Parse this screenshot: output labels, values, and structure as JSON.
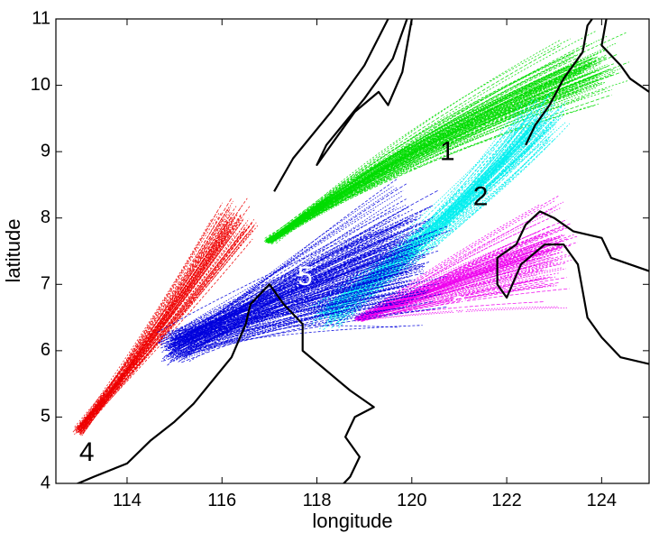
{
  "chart_data": {
    "type": "line",
    "xlabel": "longitude",
    "ylabel": "latitude",
    "xlim": [
      112.5,
      125
    ],
    "ylim": [
      4,
      11
    ],
    "xticks": [
      114,
      116,
      118,
      120,
      122,
      124
    ],
    "yticks": [
      4,
      5,
      6,
      7,
      8,
      9,
      10,
      11
    ],
    "grid": false,
    "coastline_color": "#000000",
    "coastlines": [
      [
        [
          112.8,
          3.95
        ],
        [
          113.3,
          4.1
        ],
        [
          114.0,
          4.3
        ],
        [
          114.5,
          4.65
        ],
        [
          115.0,
          4.93
        ],
        [
          115.4,
          5.2
        ],
        [
          115.8,
          5.55
        ],
        [
          116.2,
          5.9
        ],
        [
          116.5,
          6.4
        ],
        [
          116.6,
          6.7
        ],
        [
          117.0,
          7.0
        ],
        [
          117.3,
          6.7
        ],
        [
          117.7,
          6.4
        ],
        [
          117.7,
          6.0
        ],
        [
          118.2,
          5.7
        ],
        [
          118.7,
          5.4
        ],
        [
          119.2,
          5.15
        ],
        [
          118.8,
          5.0
        ],
        [
          118.6,
          4.7
        ],
        [
          118.9,
          4.4
        ],
        [
          118.7,
          4.1
        ],
        [
          118.5,
          3.95
        ]
      ],
      [
        [
          117.1,
          8.4
        ],
        [
          117.5,
          8.9
        ],
        [
          118.3,
          9.6
        ],
        [
          119.0,
          10.3
        ],
        [
          119.5,
          11.0
        ]
      ],
      [
        [
          120.0,
          11.0
        ],
        [
          119.8,
          10.2
        ],
        [
          119.5,
          9.7
        ],
        [
          119.3,
          9.9
        ],
        [
          118.8,
          9.6
        ],
        [
          118.2,
          9.0
        ],
        [
          118.0,
          8.8
        ],
        [
          118.2,
          9.1
        ],
        [
          119.0,
          9.8
        ],
        [
          119.6,
          10.4
        ],
        [
          119.9,
          11.0
        ]
      ],
      [
        [
          122.4,
          9.1
        ],
        [
          122.6,
          9.4
        ],
        [
          122.9,
          9.7
        ],
        [
          123.2,
          10.1
        ],
        [
          123.4,
          10.3
        ],
        [
          123.6,
          10.5
        ],
        [
          123.7,
          10.9
        ],
        [
          123.8,
          11.0
        ]
      ],
      [
        [
          125.0,
          7.2
        ],
        [
          124.2,
          7.4
        ],
        [
          124.0,
          7.7
        ],
        [
          123.4,
          7.8
        ],
        [
          123.0,
          8.0
        ],
        [
          122.7,
          8.1
        ],
        [
          122.4,
          7.9
        ],
        [
          122.2,
          7.6
        ],
        [
          121.8,
          7.4
        ],
        [
          121.8,
          7.0
        ],
        [
          122.0,
          6.8
        ],
        [
          122.3,
          7.3
        ],
        [
          122.8,
          7.6
        ],
        [
          123.2,
          7.6
        ],
        [
          123.5,
          7.3
        ],
        [
          123.6,
          6.9
        ],
        [
          123.7,
          6.5
        ],
        [
          124.0,
          6.2
        ],
        [
          124.4,
          5.9
        ],
        [
          125.0,
          5.8
        ]
      ],
      [
        [
          124.1,
          11.0
        ],
        [
          124.0,
          10.6
        ],
        [
          124.4,
          10.3
        ],
        [
          124.6,
          10.1
        ],
        [
          125.0,
          9.9
        ]
      ]
    ],
    "series": [
      {
        "color": "#00dd00",
        "start": [
          117.0,
          7.65
        ],
        "end": [
          123.8,
          10.25
        ],
        "start_spread": [
          0.15,
          0.05
        ],
        "end_spread": [
          0.9,
          0.7
        ],
        "bow": 0.18,
        "count": 110
      },
      {
        "color": "#00eeee",
        "start": [
          118.2,
          6.55
        ],
        "end": [
          122.8,
          9.5
        ],
        "start_spread": [
          0.5,
          0.3
        ],
        "end_spread": [
          0.8,
          0.6
        ],
        "bow": -0.12,
        "count": 90
      },
      {
        "color": "#ee00ee",
        "start": [
          118.9,
          6.48
        ],
        "end": [
          123.0,
          7.45
        ],
        "start_spread": [
          0.2,
          0.06
        ],
        "end_spread": [
          0.7,
          1.0
        ],
        "bow": 0.1,
        "count": 100
      },
      {
        "color": "#ee0000",
        "start": [
          113.0,
          4.8
        ],
        "end": [
          116.3,
          7.95
        ],
        "start_spread": [
          0.15,
          0.12
        ],
        "end_spread": [
          0.6,
          0.4
        ],
        "bow": -0.04,
        "count": 70
      },
      {
        "color": "#0000dd",
        "start": [
          115.0,
          6.05
        ],
        "end": [
          120.0,
          7.5
        ],
        "start_spread": [
          0.5,
          0.35
        ],
        "end_spread": [
          1.0,
          1.3
        ],
        "bow": 0.1,
        "count": 170
      }
    ],
    "annotations": [
      {
        "text": "1",
        "x": 120.75,
        "y": 8.98,
        "color": "#000000"
      },
      {
        "text": "2",
        "x": 121.45,
        "y": 8.3,
        "color": "#000000"
      },
      {
        "text": "3",
        "x": 121.0,
        "y": 6.65,
        "color": "#ffffff"
      },
      {
        "text": "4",
        "x": 113.15,
        "y": 4.45,
        "color": "#000000"
      },
      {
        "text": "5",
        "x": 117.75,
        "y": 7.1,
        "color": "#ffffff"
      }
    ]
  }
}
